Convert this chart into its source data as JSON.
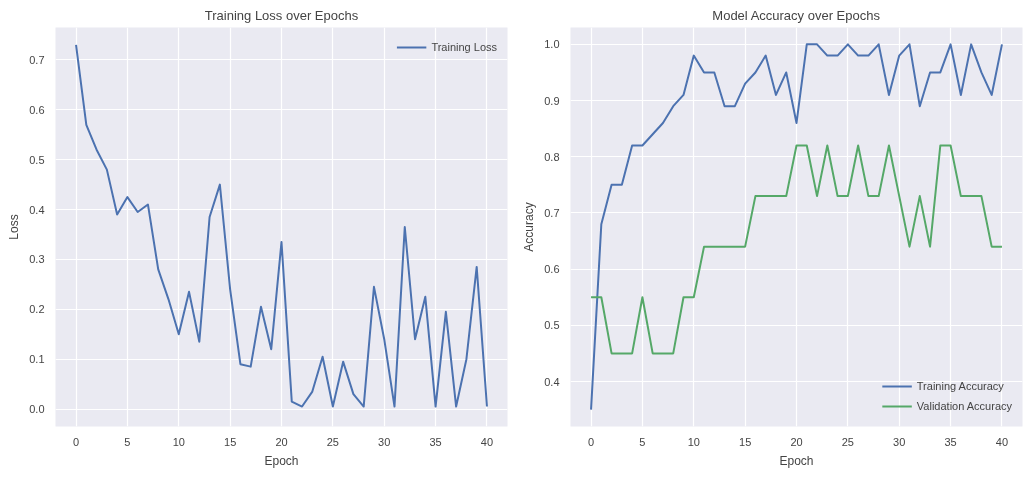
{
  "chart_data": [
    {
      "type": "line",
      "title": "Training Loss over Epochs",
      "xlabel": "Epoch",
      "ylabel": "Loss",
      "x": [
        0,
        1,
        2,
        3,
        4,
        5,
        6,
        7,
        8,
        9,
        10,
        11,
        12,
        13,
        14,
        15,
        16,
        17,
        18,
        19,
        20,
        21,
        22,
        23,
        24,
        25,
        26,
        27,
        28,
        29,
        30,
        31,
        32,
        33,
        34,
        35,
        36,
        37,
        38,
        39,
        40
      ],
      "series": [
        {
          "name": "Training Loss",
          "color": "#4c72b0",
          "values": [
            0.73,
            0.57,
            0.52,
            0.48,
            0.39,
            0.425,
            0.395,
            0.41,
            0.28,
            0.22,
            0.15,
            0.235,
            0.135,
            0.385,
            0.45,
            0.24,
            0.09,
            0.085,
            0.205,
            0.12,
            0.335,
            0.015,
            0.005,
            0.035,
            0.105,
            0.005,
            0.095,
            0.03,
            0.005,
            0.245,
            0.14,
            0.005,
            0.365,
            0.14,
            0.225,
            0.005,
            0.195,
            0.005,
            0.1,
            0.285,
            0.005
          ]
        }
      ],
      "xlim": [
        -2,
        42
      ],
      "ylim": [
        -0.035,
        0.765
      ],
      "xticks": [
        0,
        5,
        10,
        15,
        20,
        25,
        30,
        35,
        40
      ],
      "yticks": [
        {
          "value": 0,
          "label": "0.0"
        },
        0.1,
        0.2,
        0.3,
        0.4,
        0.5,
        0.6,
        0.7
      ],
      "grid": true,
      "legend": "top right"
    },
    {
      "type": "line",
      "title": "Model Accuracy over Epochs",
      "xlabel": "Epoch",
      "ylabel": "Accuracy",
      "x": [
        0,
        1,
        2,
        3,
        4,
        5,
        6,
        7,
        8,
        9,
        10,
        11,
        12,
        13,
        14,
        15,
        16,
        17,
        18,
        19,
        20,
        21,
        22,
        23,
        24,
        25,
        26,
        27,
        28,
        29,
        30,
        31,
        32,
        33,
        34,
        35,
        36,
        37,
        38,
        39,
        40
      ],
      "series": [
        {
          "name": "Training Accuracy",
          "color": "#4c72b0",
          "values": [
            0.35,
            0.68,
            0.75,
            0.75,
            0.82,
            0.82,
            0.84,
            0.86,
            0.89,
            0.91,
            0.98,
            0.95,
            0.95,
            0.89,
            0.89,
            0.93,
            0.95,
            0.98,
            0.91,
            0.95,
            0.86,
            1.0,
            1.0,
            0.98,
            0.98,
            1.0,
            0.98,
            0.98,
            1.0,
            0.91,
            0.98,
            1.0,
            0.89,
            0.95,
            0.95,
            1.0,
            0.91,
            1.0,
            0.95,
            0.91,
            1.0
          ]
        },
        {
          "name": "Validation Accuracy",
          "color": "#55a868",
          "values": [
            0.55,
            0.55,
            0.45,
            0.45,
            0.45,
            0.55,
            0.45,
            0.45,
            0.45,
            0.55,
            0.55,
            0.64,
            0.64,
            0.64,
            0.64,
            0.64,
            0.73,
            0.73,
            0.73,
            0.73,
            0.82,
            0.82,
            0.73,
            0.82,
            0.73,
            0.73,
            0.82,
            0.73,
            0.73,
            0.82,
            0.73,
            0.64,
            0.73,
            0.64,
            0.82,
            0.82,
            0.73,
            0.73,
            0.73,
            0.64,
            0.64
          ]
        }
      ],
      "xlim": [
        -2,
        42
      ],
      "ylim": [
        0.32,
        1.03
      ],
      "xticks": [
        0,
        5,
        10,
        15,
        20,
        25,
        30,
        35,
        40
      ],
      "yticks": [
        0.4,
        0.5,
        0.6,
        0.7,
        0.8,
        0.9,
        {
          "value": 1.0,
          "label": "1.0"
        }
      ],
      "grid": true,
      "legend": "bottom right"
    }
  ]
}
